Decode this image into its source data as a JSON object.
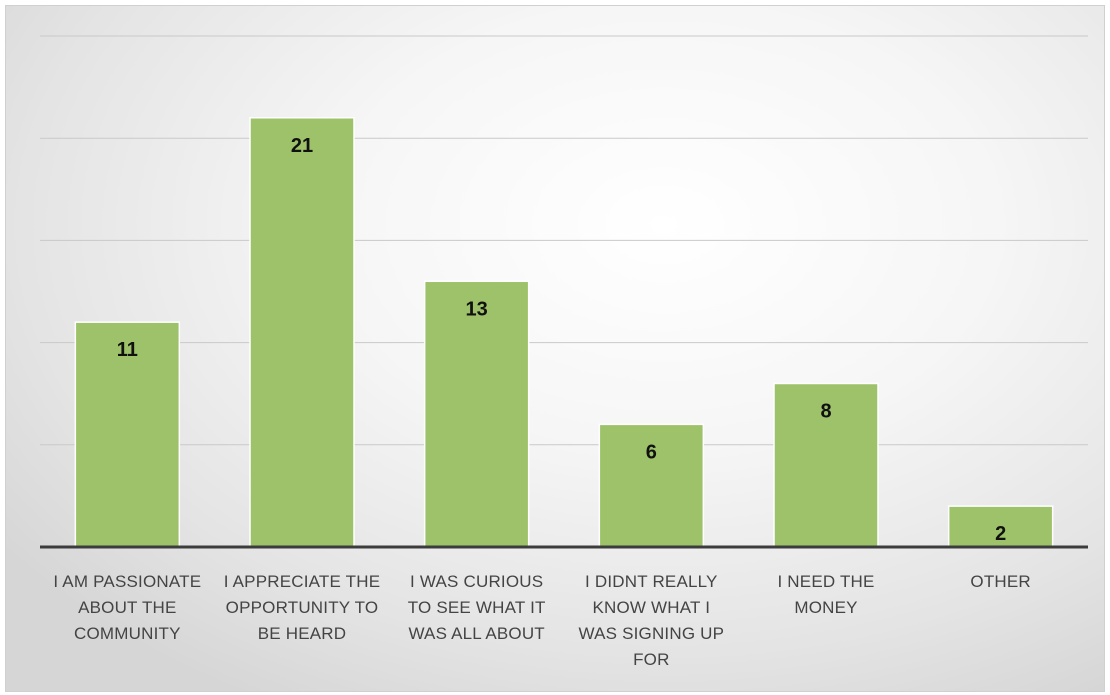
{
  "chart_data": {
    "type": "bar",
    "title": "",
    "xlabel": "",
    "ylabel": "",
    "categories": [
      [
        "I AM PASSIONATE",
        "ABOUT THE",
        "COMMUNITY"
      ],
      [
        "I APPRECIATE THE",
        "OPPORTUNITY TO",
        "BE HEARD"
      ],
      [
        "I WAS CURIOUS",
        "TO SEE WHAT IT",
        "WAS ALL ABOUT"
      ],
      [
        "I DIDNT REALLY",
        "KNOW WHAT I",
        "WAS SIGNING UP",
        "FOR"
      ],
      [
        "I NEED THE",
        "MONEY"
      ],
      [
        "OTHER"
      ]
    ],
    "values": [
      11,
      21,
      13,
      6,
      8,
      2
    ],
    "ylim": [
      0,
      25
    ],
    "grid_step": 5,
    "grid": true,
    "legend": "none",
    "data_labels": true,
    "bar_color": "#9dc26a"
  }
}
